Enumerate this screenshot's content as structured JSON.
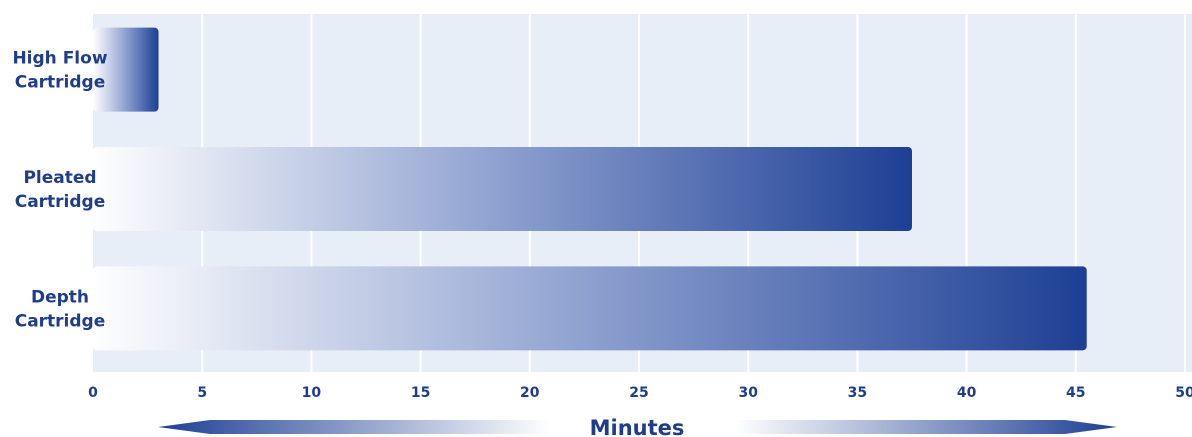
{
  "chart_data": {
    "type": "bar",
    "orientation": "horizontal",
    "categories": [
      "High Flow\nCartridge",
      "Pleated\nCartridge",
      "Depth\nCartridge"
    ],
    "values": [
      3,
      37.5,
      45.5
    ],
    "xlabel": "Minutes",
    "ylabel": "",
    "title": "",
    "xlim": [
      0,
      50
    ],
    "xticks": [
      0,
      5,
      10,
      15,
      20,
      25,
      30,
      35,
      40,
      45,
      50
    ],
    "grid": true
  },
  "colors": {
    "plot_background": "#e8eef8",
    "gridline": "#ffffff",
    "bar_start": "#ffffff",
    "bar_mid": "#8da0cf",
    "bar_end": "#1d3f94",
    "text": "#1e3e8c"
  },
  "decorations": {
    "arrow_left_icon": "left-arrow-gradient",
    "arrow_right_icon": "right-arrow-gradient"
  }
}
